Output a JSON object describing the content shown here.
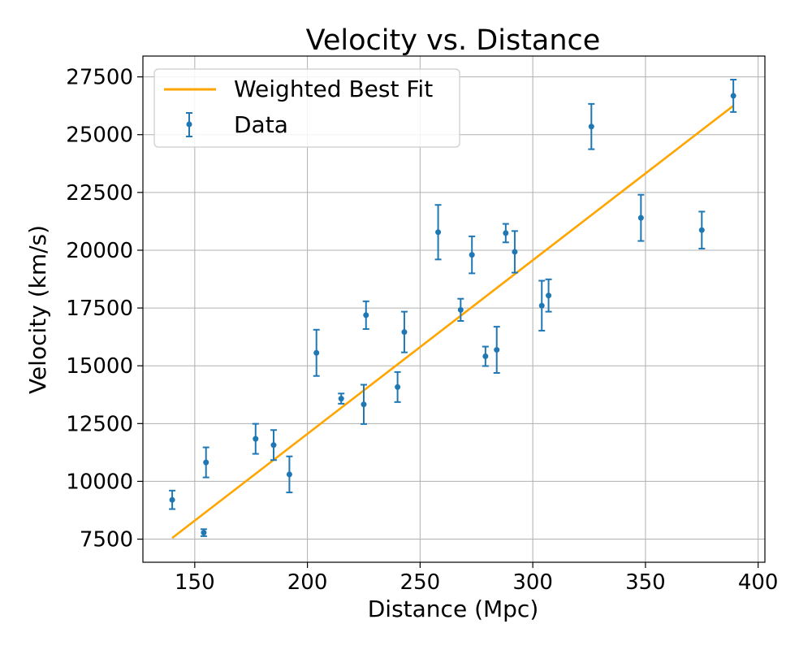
{
  "chart_data": {
    "type": "scatter",
    "title": "Velocity vs. Distance",
    "xlabel": "Distance (Mpc)",
    "ylabel": "Velocity (km/s)",
    "xlim": [
      127,
      403
    ],
    "ylim": [
      6500,
      28400
    ],
    "xticks": [
      150,
      200,
      250,
      300,
      350,
      400
    ],
    "yticks": [
      7500,
      10000,
      12500,
      15000,
      17500,
      20000,
      22500,
      25000,
      27500
    ],
    "grid": true,
    "legend_position": "top-left",
    "colors": {
      "data": "#1f77b4",
      "fit": "#ffa500"
    },
    "series": [
      {
        "name": "Data",
        "kind": "errorbar",
        "points": [
          {
            "x": 140,
            "y": 9200,
            "err": 400
          },
          {
            "x": 154,
            "y": 7780,
            "err": 150
          },
          {
            "x": 155,
            "y": 10820,
            "err": 650
          },
          {
            "x": 177,
            "y": 11840,
            "err": 650
          },
          {
            "x": 185,
            "y": 11570,
            "err": 650
          },
          {
            "x": 192,
            "y": 10300,
            "err": 780
          },
          {
            "x": 204,
            "y": 15560,
            "err": 1000
          },
          {
            "x": 215,
            "y": 13580,
            "err": 220
          },
          {
            "x": 225,
            "y": 13330,
            "err": 850
          },
          {
            "x": 226,
            "y": 17190,
            "err": 600
          },
          {
            "x": 240,
            "y": 14080,
            "err": 650
          },
          {
            "x": 243,
            "y": 16460,
            "err": 880
          },
          {
            "x": 258,
            "y": 20780,
            "err": 1180
          },
          {
            "x": 268,
            "y": 17420,
            "err": 480
          },
          {
            "x": 273,
            "y": 19800,
            "err": 800
          },
          {
            "x": 279,
            "y": 15410,
            "err": 420
          },
          {
            "x": 284,
            "y": 15690,
            "err": 1000
          },
          {
            "x": 288,
            "y": 20740,
            "err": 400
          },
          {
            "x": 292,
            "y": 19930,
            "err": 900
          },
          {
            "x": 304,
            "y": 17600,
            "err": 1080
          },
          {
            "x": 307,
            "y": 18040,
            "err": 700
          },
          {
            "x": 326,
            "y": 25350,
            "err": 980
          },
          {
            "x": 348,
            "y": 21400,
            "err": 1000
          },
          {
            "x": 375,
            "y": 20870,
            "err": 800
          },
          {
            "x": 389,
            "y": 26680,
            "err": 700
          }
        ]
      },
      {
        "name": "Weighted Best Fit",
        "kind": "line",
        "x": [
          140,
          389
        ],
        "y": [
          7550,
          26250
        ]
      }
    ]
  }
}
